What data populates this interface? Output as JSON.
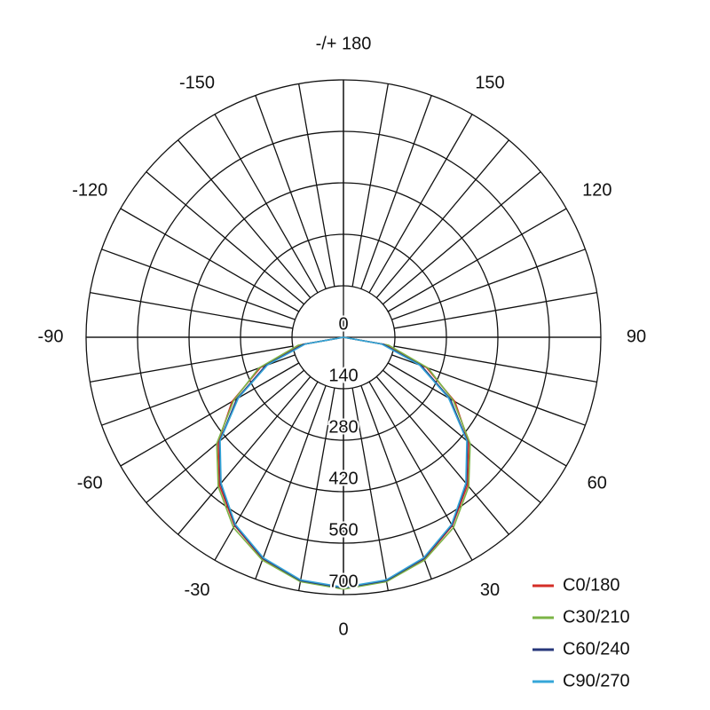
{
  "chart_data": {
    "type": "polar",
    "angles": [
      -90,
      -80,
      -70,
      -60,
      -50,
      -40,
      -30,
      -20,
      -10,
      0,
      10,
      20,
      30,
      40,
      50,
      60,
      70,
      80,
      90
    ],
    "series": [
      {
        "name": "C0/180",
        "color": "#d42e27",
        "values": [
          0,
          120,
          240,
          350,
          445,
          525,
          592,
          642,
          673,
          683,
          673,
          642,
          592,
          525,
          445,
          350,
          240,
          120,
          0
        ]
      },
      {
        "name": "C30/210",
        "color": "#7bb446",
        "values": [
          0,
          125,
          245,
          345,
          450,
          530,
          598,
          645,
          675,
          685,
          675,
          645,
          598,
          530,
          450,
          345,
          245,
          125,
          0
        ]
      },
      {
        "name": "C60/240",
        "color": "#27377a",
        "values": [
          0,
          110,
          225,
          335,
          440,
          520,
          590,
          640,
          672,
          682,
          672,
          640,
          590,
          520,
          440,
          335,
          225,
          110,
          0
        ]
      },
      {
        "name": "C90/270",
        "color": "#35a6d8",
        "values": [
          0,
          105,
          220,
          330,
          438,
          518,
          588,
          638,
          670,
          680,
          670,
          638,
          588,
          518,
          438,
          330,
          220,
          105,
          0
        ]
      }
    ],
    "rlim": [
      0,
      700
    ],
    "rticks": [
      0,
      140,
      280,
      420,
      560,
      700
    ],
    "thetaticks": [
      0,
      30,
      60,
      90,
      120,
      150,
      {
        "value": 180,
        "label": "-/+ 180"
      },
      -150,
      -120,
      -90,
      -60,
      -30
    ]
  }
}
